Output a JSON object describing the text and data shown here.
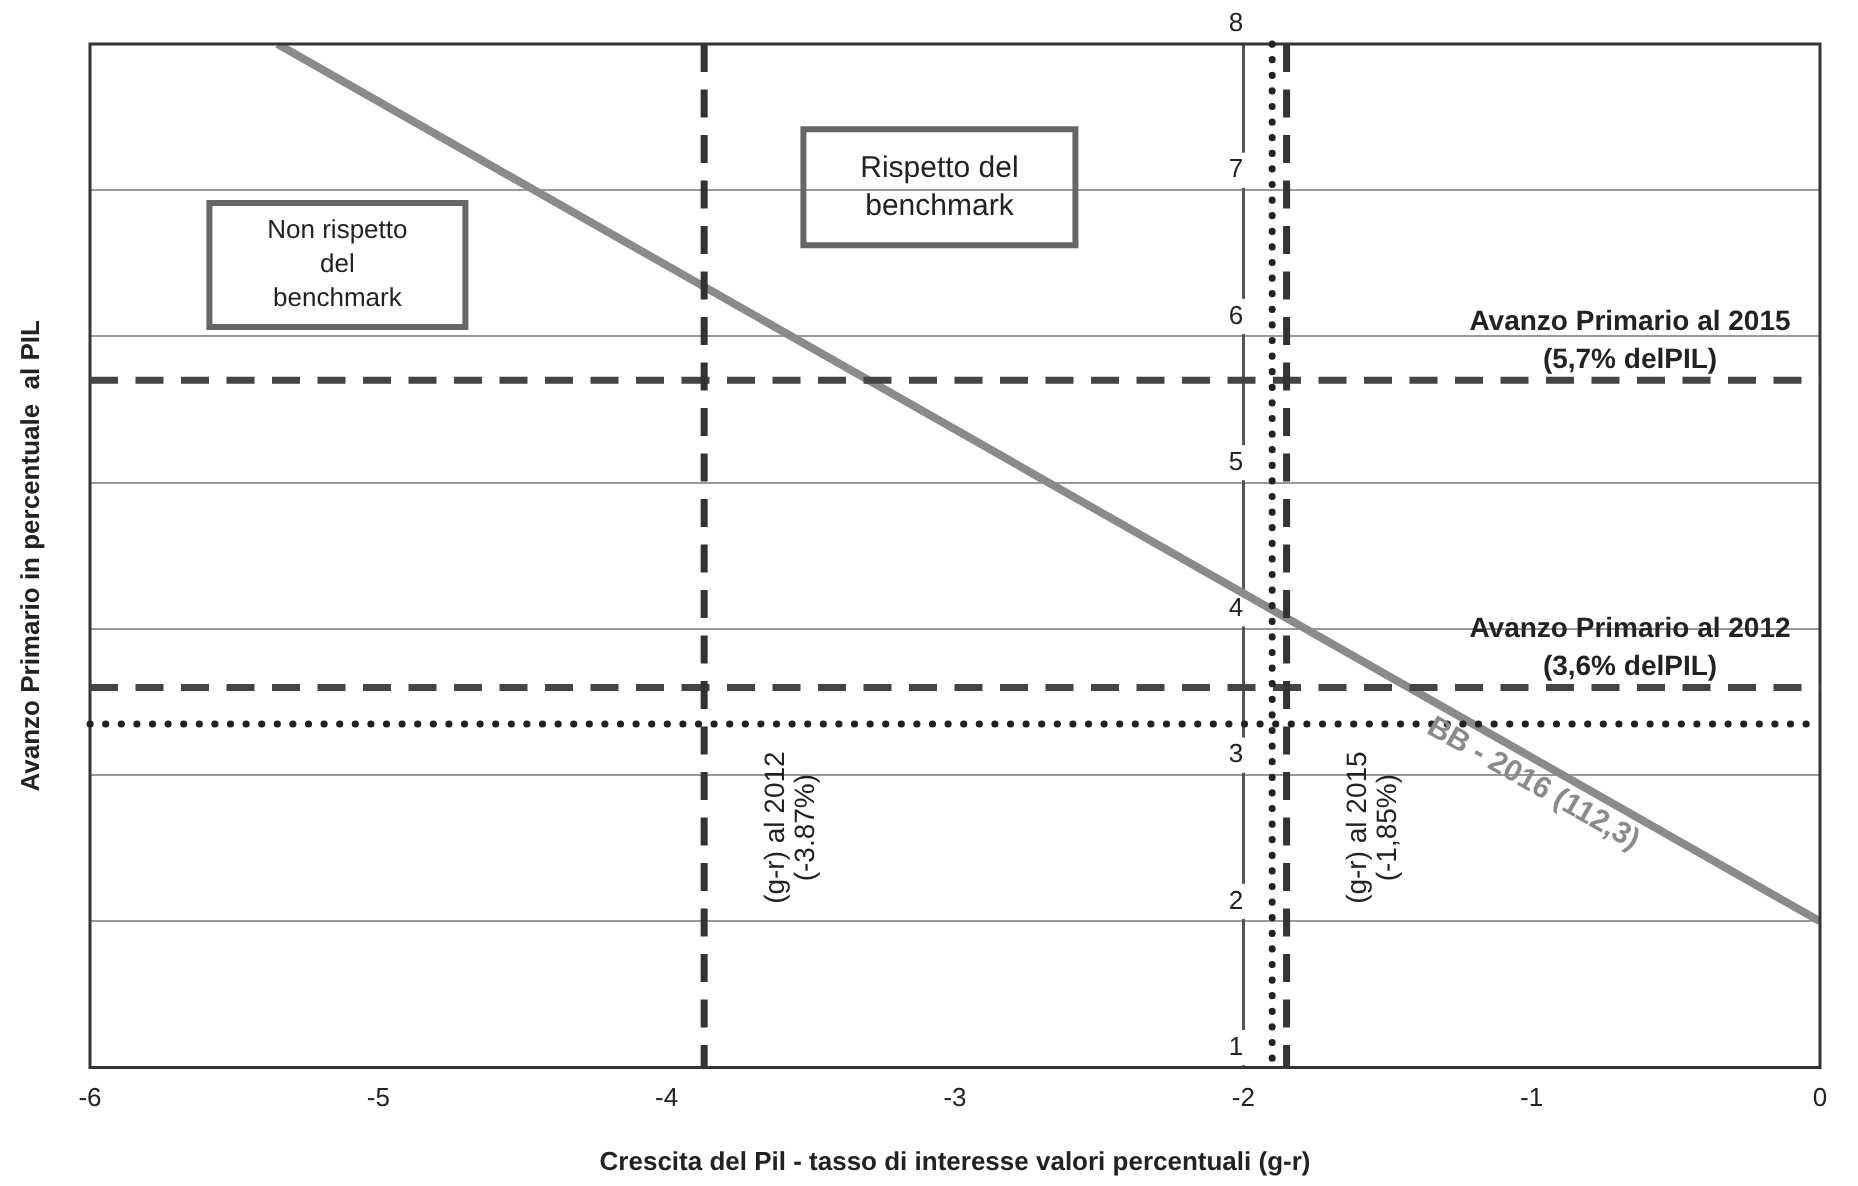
{
  "chart_data": {
    "type": "line",
    "xlabel": "Crescita del Pil - tasso di interesse valori percentuali (g-r)",
    "ylabel": "Avanzo Primario in percentuale  al PIL",
    "series": [
      {
        "name": "BB - 2016 (112,3)",
        "color": "#8a8a8a",
        "x": [
          -5.35,
          0
        ],
        "values": [
          8,
          2
        ]
      }
    ],
    "xlim": [
      -6,
      0
    ],
    "xticks": [
      -6,
      -5,
      -4,
      -3,
      -2,
      -1,
      0
    ],
    "ylim": [
      1,
      8
    ],
    "yticks": [
      1,
      2,
      3,
      4,
      5,
      6,
      7,
      8
    ],
    "grid": "y",
    "marker": "none",
    "line_style": "solid",
    "ref_lines": [
      {
        "axis": "y",
        "value": 5.7,
        "label": "Avanzo Primario al 2015\n(5,7% delPIL)",
        "color": "#444444",
        "line_style": "dashed"
      },
      {
        "axis": "y",
        "value": 3.6,
        "label": "Avanzo Primario al 2012\n(3,6% delPIL)",
        "color": "#444444",
        "line_style": "dashed"
      },
      {
        "axis": "y",
        "value": 3.35,
        "color": "#222222",
        "line_style": "dotted"
      },
      {
        "axis": "x",
        "value": -3.87,
        "label": "(g-r) al 2012\n(-3.87%)",
        "color": "#333333",
        "line_style": "dashed"
      },
      {
        "axis": "x",
        "value": -1.9,
        "color": "#222222",
        "line_style": "dotted"
      },
      {
        "axis": "x",
        "value": -1.85,
        "label": "(g-r) al 2015\n(-1,85%)",
        "color": "#333333",
        "line_style": "dashed"
      }
    ],
    "annotations": [
      "Non rispetto\ndel\nbenchmark",
      "Rispetto del\nbenchmark"
    ]
  }
}
